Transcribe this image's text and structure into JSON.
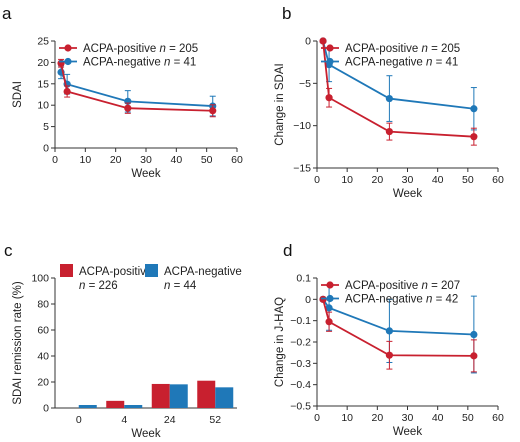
{
  "colors": {
    "positive": "#c8202f",
    "negative": "#1f78b8"
  },
  "chart_data": [
    {
      "panel": "a",
      "type": "line",
      "xlabel": "Week",
      "ylabel": "SDAI",
      "xlim": [
        0,
        60
      ],
      "ylim": [
        0,
        25
      ],
      "xticks": [
        "0",
        "10",
        "20",
        "30",
        "40",
        "50",
        "60"
      ],
      "yticks": [
        "0",
        "5",
        "10",
        "15",
        "20",
        "25"
      ],
      "legend_position": "top-left",
      "series": [
        {
          "name": "ACPA-positive",
          "n_label": "n",
          "n_value": "= 205",
          "color": "positive",
          "x": [
            2,
            4,
            24,
            52
          ],
          "y": [
            19.8,
            13.2,
            9.3,
            8.7
          ],
          "err": [
            0.9,
            1.3,
            1.2,
            1.4
          ]
        },
        {
          "name": "ACPA-negative",
          "n_label": "n",
          "n_value": "= 41",
          "color": "negative",
          "x": [
            2,
            4,
            24,
            52
          ],
          "y": [
            17.7,
            14.9,
            10.9,
            9.8
          ],
          "err": [
            1.5,
            2.3,
            2.5,
            2.3
          ]
        }
      ]
    },
    {
      "panel": "b",
      "type": "line",
      "xlabel": "Week",
      "ylabel": "Change in SDAI",
      "xlim": [
        0,
        60
      ],
      "ylim": [
        -15,
        0
      ],
      "xticks": [
        "0",
        "10",
        "20",
        "30",
        "40",
        "50",
        "60"
      ],
      "yticks": [
        "0",
        "−5",
        "−10",
        "−15"
      ],
      "legend_position": "top-left",
      "series": [
        {
          "name": "ACPA-positive",
          "n_label": "n",
          "n_value": "= 205",
          "color": "positive",
          "x": [
            2,
            4,
            24,
            52
          ],
          "y": [
            0,
            -6.7,
            -10.7,
            -11.3
          ],
          "err": [
            0,
            1.1,
            1.0,
            1.0
          ]
        },
        {
          "name": "ACPA-negative",
          "n_label": "n",
          "n_value": "= 41",
          "color": "negative",
          "x": [
            2,
            4,
            24,
            52
          ],
          "y": [
            0,
            -2.8,
            -6.8,
            -8.0
          ],
          "err": [
            0,
            2.0,
            2.7,
            2.5
          ]
        }
      ]
    },
    {
      "panel": "c",
      "type": "bar",
      "xlabel": "Week",
      "ylabel": "SDAI remission rate (%)",
      "ylim": [
        0,
        100
      ],
      "yticks": [
        "0",
        "20",
        "40",
        "60",
        "80",
        "100"
      ],
      "categories": [
        "0",
        "4",
        "24",
        "52"
      ],
      "legend_position": "top",
      "series": [
        {
          "name": "ACPA-positive",
          "n_label": "n",
          "n_value": "= 226",
          "color": "positive",
          "values": [
            0,
            5.5,
            18.5,
            21
          ]
        },
        {
          "name": "ACPA-negative",
          "n_label": "n",
          "n_value": "= 44",
          "color": "negative",
          "values": [
            2.3,
            2.3,
            18.2,
            15.9
          ]
        }
      ]
    },
    {
      "panel": "d",
      "type": "line",
      "xlabel": "Week",
      "ylabel": "Change in J-HAQ",
      "xlim": [
        0,
        60
      ],
      "ylim": [
        -0.5,
        0.1
      ],
      "xticks": [
        "0",
        "10",
        "20",
        "30",
        "40",
        "50",
        "60"
      ],
      "yticks": [
        "0.1",
        "0",
        "−0.1",
        "−0.2",
        "−0.3",
        "−0.4",
        "−0.5"
      ],
      "legend_position": "top-left",
      "series": [
        {
          "name": "ACPA-positive",
          "n_label": "n",
          "n_value": "= 207",
          "color": "positive",
          "x": [
            2,
            4,
            24,
            52
          ],
          "y": [
            0,
            -0.105,
            -0.262,
            -0.265
          ],
          "err": [
            0,
            0.045,
            0.065,
            0.075
          ]
        },
        {
          "name": "ACPA-negative",
          "n_label": "n",
          "n_value": "= 42",
          "color": "negative",
          "x": [
            2,
            4,
            24,
            52
          ],
          "y": [
            0,
            -0.04,
            -0.148,
            -0.165
          ],
          "err": [
            0,
            0.105,
            0.148,
            0.18
          ]
        }
      ]
    }
  ]
}
